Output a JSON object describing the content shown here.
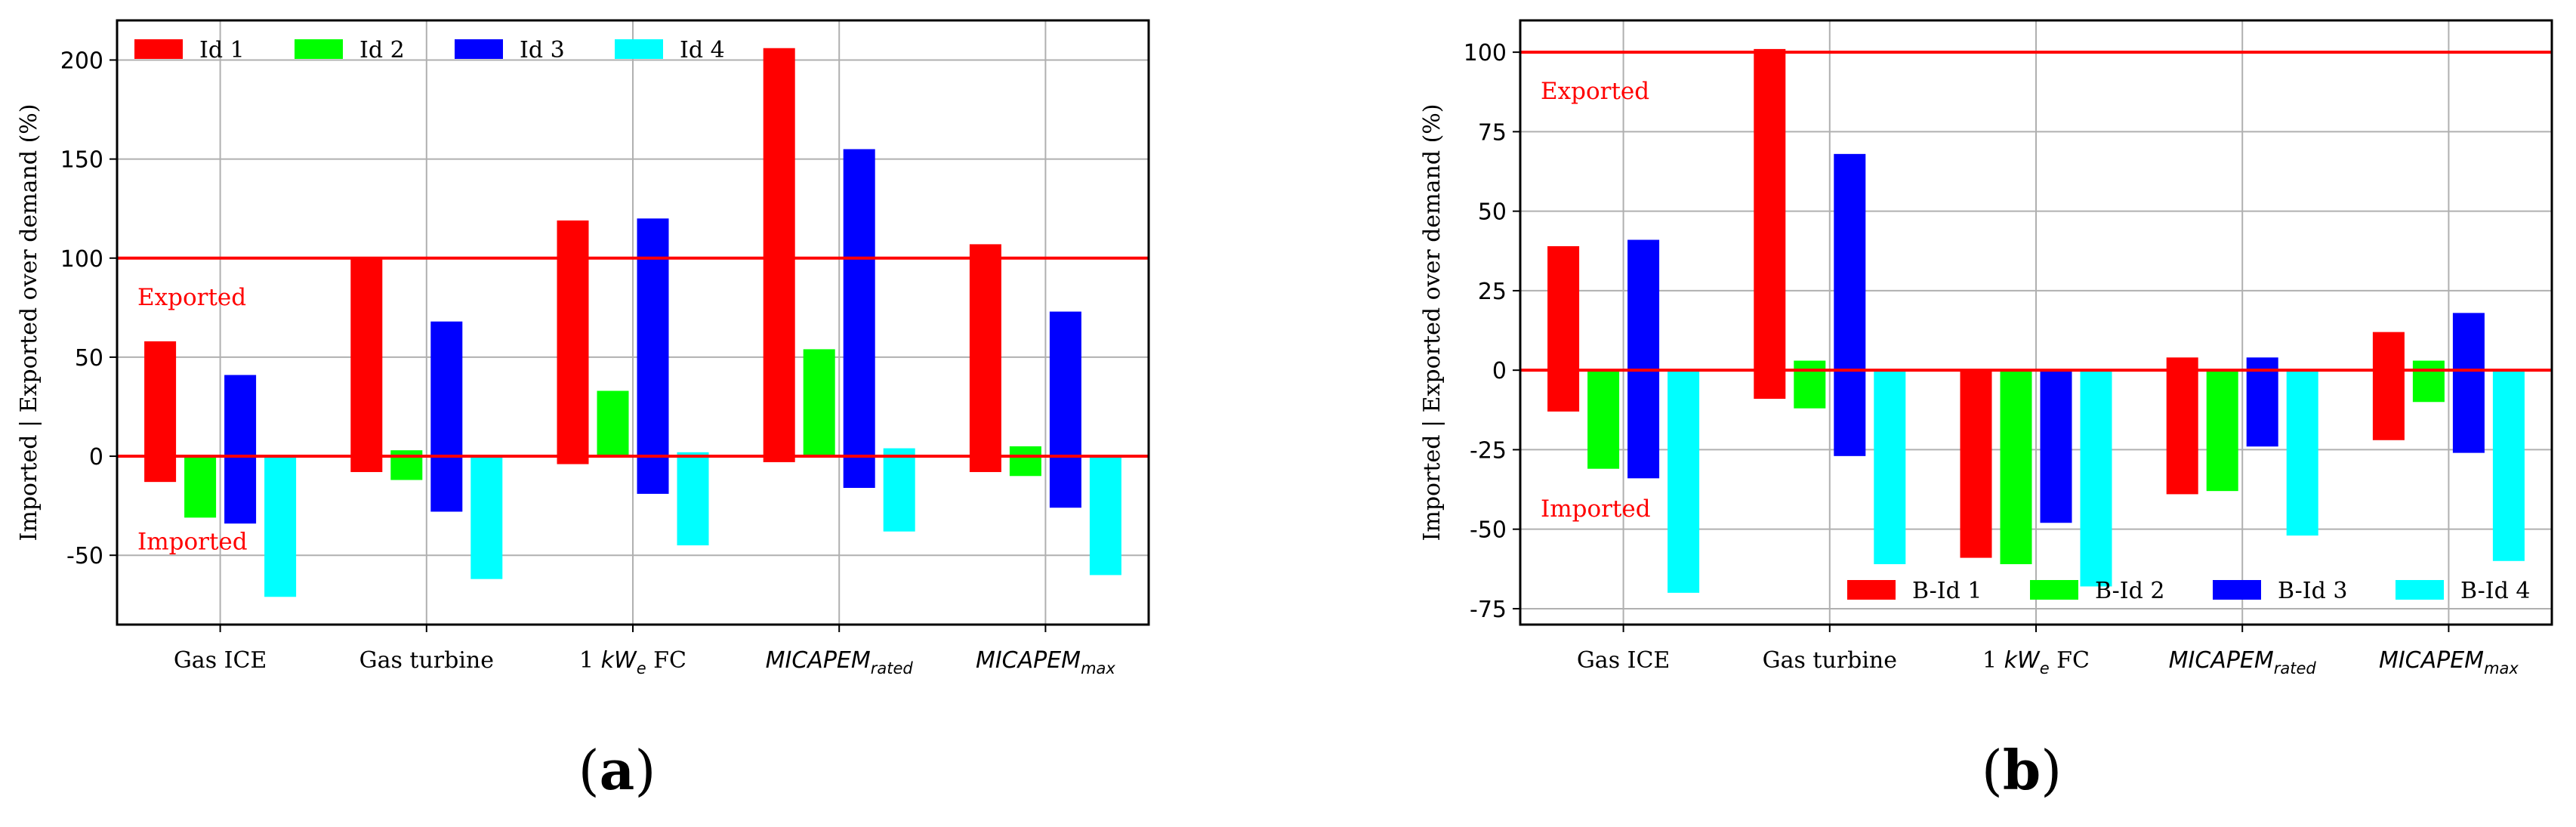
{
  "chart_data": [
    {
      "type": "bar",
      "panel_label": "(a)",
      "panel_letter": "a",
      "title": "",
      "xlabel": "",
      "ylabel": "Imported | Exported over demand (%)",
      "ylim": [
        -85,
        220
      ],
      "yticks": [
        -50,
        0,
        50,
        100,
        150,
        200
      ],
      "grid": true,
      "legend_position": "top",
      "reference_lines": [
        0,
        100
      ],
      "annotations": [
        {
          "text": "Exported",
          "color": "#ff0000"
        },
        {
          "text": "Imported",
          "color": "#ff0000"
        }
      ],
      "categories": [
        {
          "label": "Gas ICE"
        },
        {
          "label": "Gas turbine"
        },
        {
          "prefix": "1 ",
          "italic": "kW",
          "sub": "e",
          "suffix": " FC"
        },
        {
          "italic": "MICAPEM",
          "sub": "rated"
        },
        {
          "italic": "MICAPEM",
          "sub": "max"
        }
      ],
      "series": [
        {
          "name": "Id 1",
          "color": "#ff0000",
          "ranges": [
            [
              -13,
              58
            ],
            [
              -8,
              100
            ],
            [
              -4,
              119
            ],
            [
              -3,
              206
            ],
            [
              -8,
              107
            ]
          ]
        },
        {
          "name": "Id 2",
          "color": "#00ff00",
          "ranges": [
            [
              -31,
              0
            ],
            [
              -12,
              3
            ],
            [
              0,
              33
            ],
            [
              0,
              54
            ],
            [
              -10,
              5
            ]
          ]
        },
        {
          "name": "Id 3",
          "color": "#0000ff",
          "ranges": [
            [
              -34,
              41
            ],
            [
              -28,
              68
            ],
            [
              -19,
              120
            ],
            [
              -16,
              155
            ],
            [
              -26,
              73
            ]
          ]
        },
        {
          "name": "Id 4",
          "color": "#00ffff",
          "ranges": [
            [
              -71,
              0
            ],
            [
              -62,
              0
            ],
            [
              -45,
              2
            ],
            [
              -38,
              4
            ],
            [
              -60,
              0
            ]
          ]
        }
      ]
    },
    {
      "type": "bar",
      "panel_label": "(b)",
      "panel_letter": "b",
      "title": "",
      "xlabel": "",
      "ylabel": "Imported | Exported over demand (%)",
      "ylim": [
        -80,
        110
      ],
      "yticks": [
        -75,
        -50,
        -25,
        0,
        25,
        50,
        75,
        100
      ],
      "grid": true,
      "legend_position": "bottom-right",
      "reference_lines": [
        0,
        100
      ],
      "annotations": [
        {
          "text": "Exported",
          "color": "#ff0000"
        },
        {
          "text": "Imported",
          "color": "#ff0000"
        }
      ],
      "categories": [
        {
          "label": "Gas ICE"
        },
        {
          "label": "Gas turbine"
        },
        {
          "prefix": "1 ",
          "italic": "kW",
          "sub": "e",
          "suffix": " FC"
        },
        {
          "italic": "MICAPEM",
          "sub": "rated"
        },
        {
          "italic": "MICAPEM",
          "sub": "max"
        }
      ],
      "series": [
        {
          "name": "B-Id 1",
          "color": "#ff0000",
          "ranges": [
            [
              -13,
              39
            ],
            [
              -9,
              101
            ],
            [
              -59,
              0
            ],
            [
              -39,
              4
            ],
            [
              -22,
              12
            ]
          ]
        },
        {
          "name": "B-Id 2",
          "color": "#00ff00",
          "ranges": [
            [
              -31,
              0
            ],
            [
              -12,
              3
            ],
            [
              -61,
              0
            ],
            [
              -38,
              0
            ],
            [
              -10,
              3
            ]
          ]
        },
        {
          "name": "B-Id 3",
          "color": "#0000ff",
          "ranges": [
            [
              -34,
              41
            ],
            [
              -27,
              68
            ],
            [
              -48,
              0
            ],
            [
              -24,
              4
            ],
            [
              -26,
              18
            ]
          ]
        },
        {
          "name": "B-Id 4",
          "color": "#00ffff",
          "ranges": [
            [
              -70,
              0
            ],
            [
              -61,
              0
            ],
            [
              -68,
              0
            ],
            [
              -52,
              0
            ],
            [
              -60,
              0
            ]
          ]
        }
      ]
    }
  ]
}
